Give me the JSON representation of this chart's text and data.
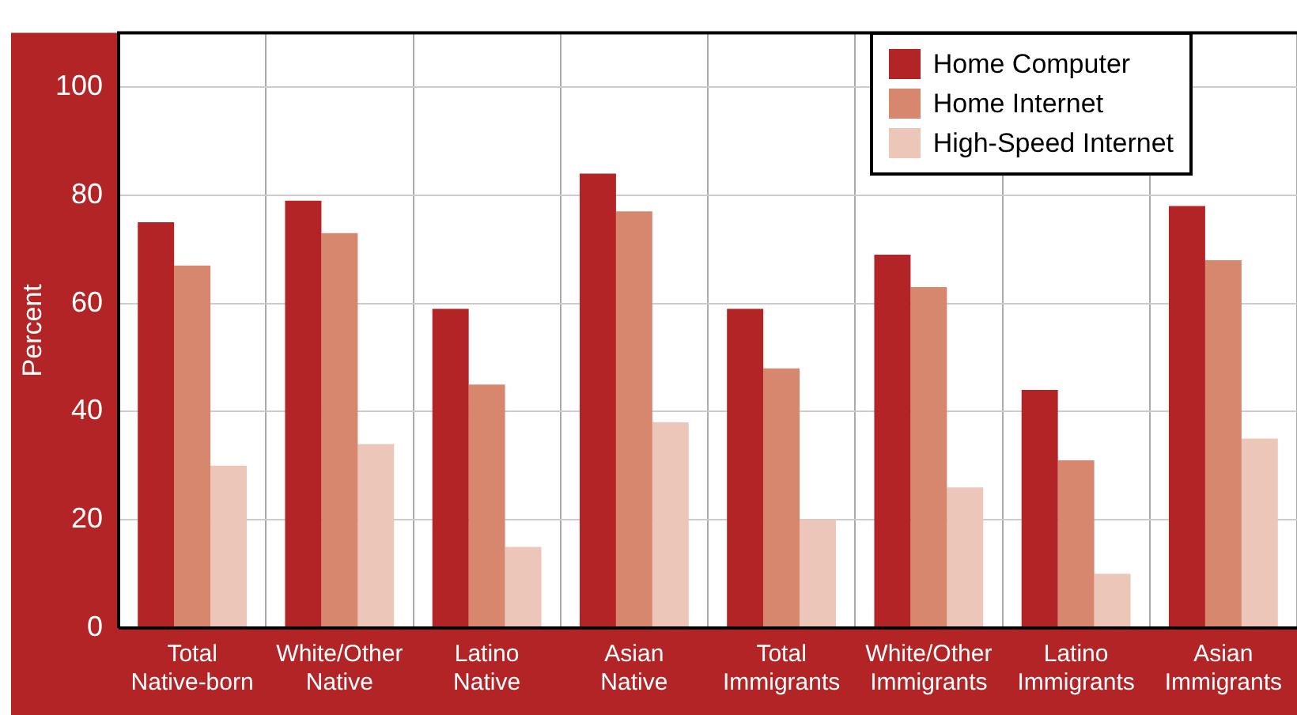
{
  "chart_data": {
    "type": "bar",
    "ylabel": "Percent",
    "categories": [
      "Total\nNative-born",
      "White/Other\nNative",
      "Latino\nNative",
      "Asian\nNative",
      "Total\nImmigrants",
      "White/Other\nImmigrants",
      "Latino\nImmigrants",
      "Asian\nImmigrants"
    ],
    "series": [
      {
        "name": "Home Computer",
        "color": "#b22426",
        "values": [
          75,
          79,
          59,
          84,
          59,
          69,
          44,
          78
        ]
      },
      {
        "name": "Home Internet",
        "color": "#d6876d",
        "values": [
          67,
          73,
          45,
          77,
          48,
          63,
          31,
          68
        ]
      },
      {
        "name": "High-Speed Internet",
        "color": "#ecc6b8",
        "values": [
          30,
          34,
          15,
          38,
          20,
          26,
          10,
          35
        ]
      }
    ],
    "ylim": [
      0,
      110
    ],
    "yticks": [
      0,
      20,
      40,
      60,
      80,
      100
    ],
    "grid": true,
    "legend": "top right"
  }
}
